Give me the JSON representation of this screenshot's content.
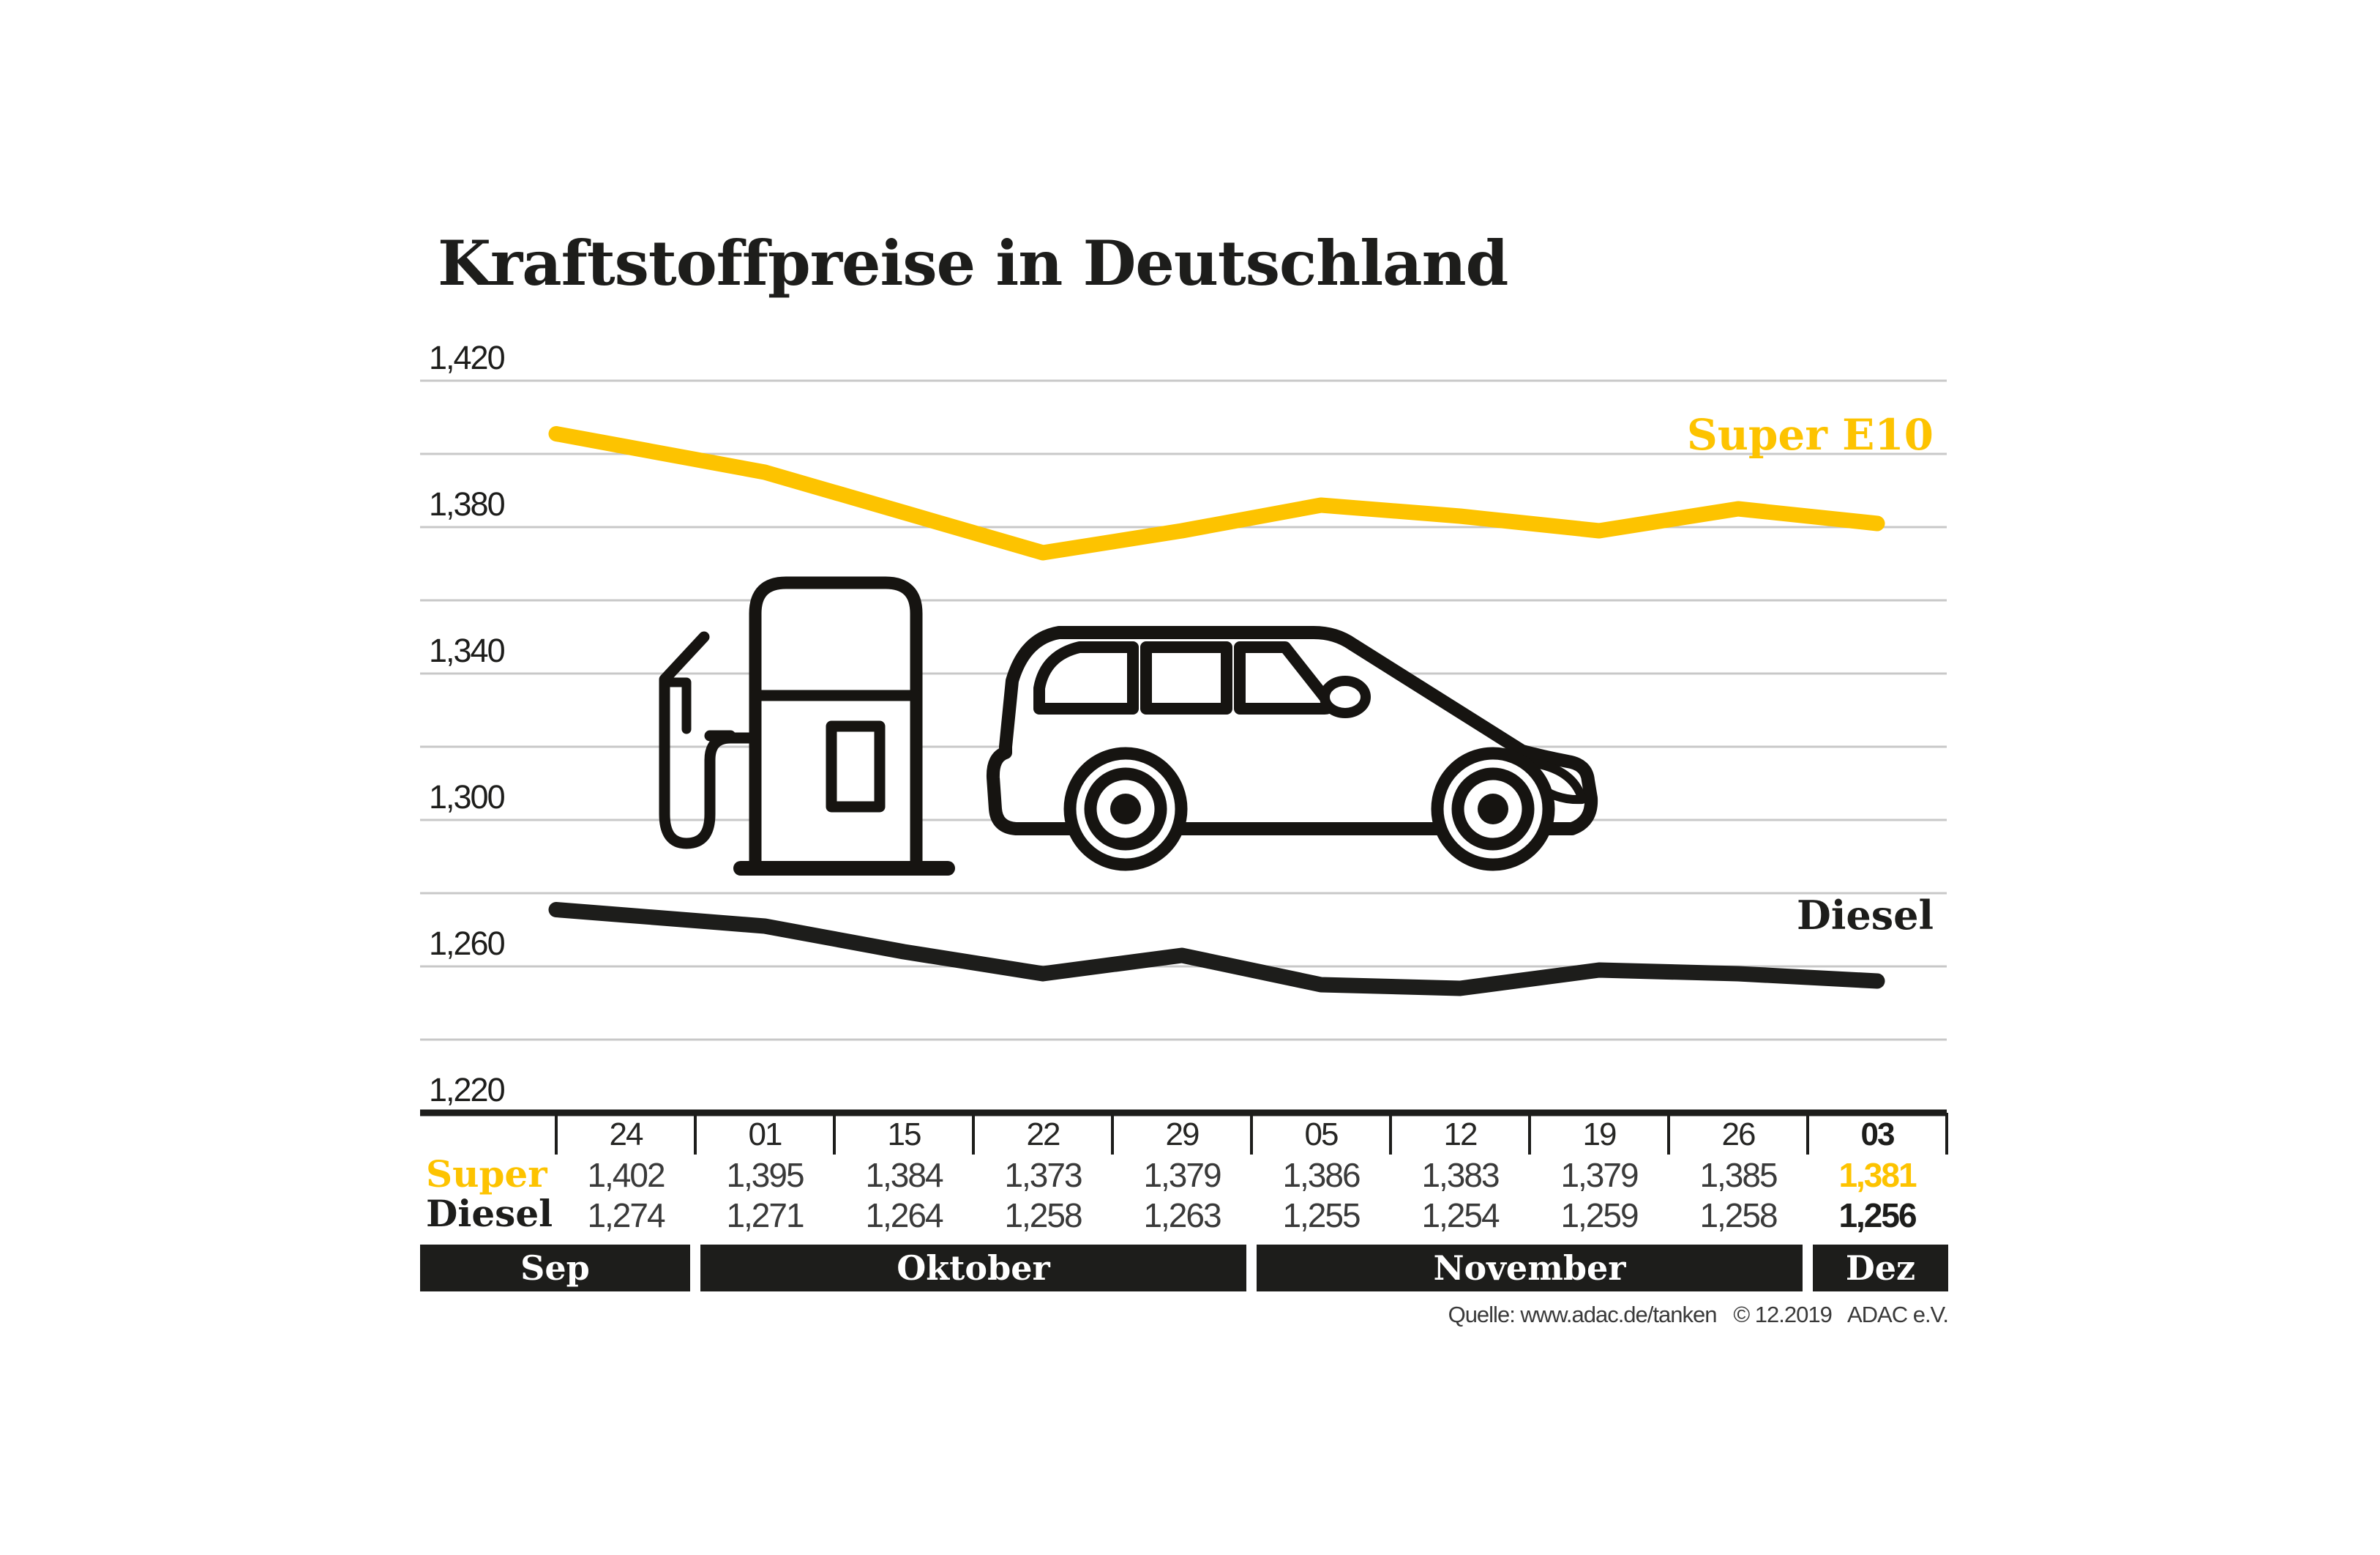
{
  "title": "Kraftstoffpreise in Deutschland",
  "source": "Quelle: www.adac.de/tanken   © 12.2019   ADAC e.V.",
  "labels": {
    "super_series": "Super E10",
    "diesel_series": "Diesel",
    "super_row": "Super",
    "diesel_row": "Diesel"
  },
  "colors": {
    "accent_yellow": "#fdc300",
    "ink": "#1d1d1b",
    "grid": "#c8c8c8",
    "month_bar_bg": "#1d1d1b",
    "value_text": "#3a3a3a",
    "background": "#ffffff"
  },
  "icons": [
    "fuel-pump-icon",
    "car-icon"
  ],
  "chart_data": {
    "type": "line",
    "title": "Kraftstoffpreise in Deutschland",
    "categories": [
      "24",
      "01",
      "15",
      "22",
      "29",
      "05",
      "12",
      "19",
      "26",
      "03"
    ],
    "months": [
      {
        "label": "Sep",
        "columns": 1
      },
      {
        "label": "Oktober",
        "columns": 4
      },
      {
        "label": "November",
        "columns": 4
      },
      {
        "label": "Dez",
        "columns": 1
      }
    ],
    "ylim": [
      1.22,
      1.42
    ],
    "grid": true,
    "grid_step": 0.02,
    "ytick_labels": [
      "1,420",
      "1,380",
      "1,340",
      "1,300",
      "1,260",
      "1,220"
    ],
    "ytick_values": [
      1.42,
      1.38,
      1.34,
      1.3,
      1.26,
      1.22
    ],
    "legend_position": "inline-right-of-line",
    "series": [
      {
        "name": "Super E10",
        "color": "#fdc300",
        "values": [
          1.402,
          1.395,
          1.384,
          1.373,
          1.379,
          1.386,
          1.383,
          1.379,
          1.385,
          1.381
        ],
        "display": [
          "1,402",
          "1,395",
          "1,384",
          "1,373",
          "1,379",
          "1,386",
          "1,383",
          "1,379",
          "1,385",
          "1,381"
        ]
      },
      {
        "name": "Diesel",
        "color": "#1d1d1b",
        "values": [
          1.274,
          1.271,
          1.264,
          1.258,
          1.263,
          1.255,
          1.254,
          1.259,
          1.258,
          1.256
        ],
        "display": [
          "1,274",
          "1,271",
          "1,264",
          "1,258",
          "1,263",
          "1,255",
          "1,254",
          "1,259",
          "1,258",
          "1,256"
        ]
      }
    ]
  }
}
